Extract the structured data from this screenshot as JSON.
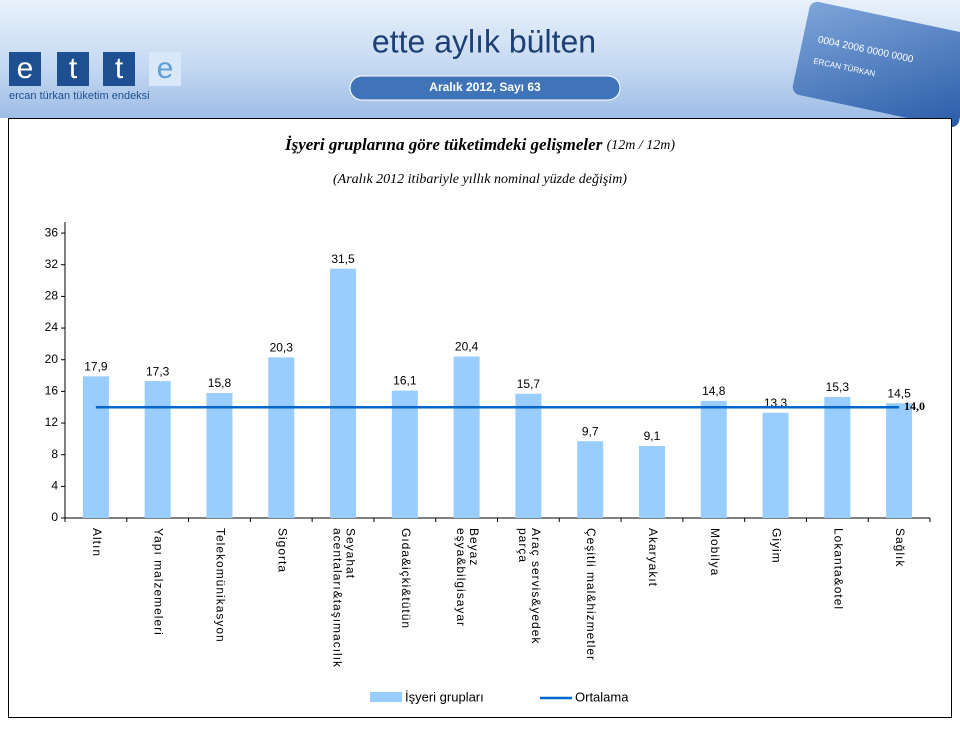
{
  "header": {
    "logo_letters": [
      "e",
      "t",
      "t",
      "e"
    ],
    "logo_caption": "ercan türkan tüketim endeksi",
    "title": "ette aylık bülten",
    "issue": "Aralık 2012, Sayı  63",
    "card_number": "0004 2006 0000 0000",
    "card_name": "ERCAN TÜRKAN"
  },
  "chart_data": {
    "type": "bar",
    "title": "İşyeri gruplarına göre tüketimdeki  gelişmeler",
    "title_note": "(12m / 12m)",
    "subtitle": "(Aralık 2012 itibariyle yıllık nominal yüzde değişim)",
    "categories": [
      "Altın",
      "Yapı malzemeleri",
      "Telekomünikasyon",
      "Sigorta",
      "Seyahat\nacentaları&taşımacılık",
      "Gıda&içki&tütün",
      "Beyaz\neşya&bilgisayar",
      "Araç servis&yedek\nparça",
      "Çeşitli mal&hizmetler",
      "Akaryakıt",
      "Mobilya",
      "Giyim",
      "Lokanta&otel",
      "Sağlık"
    ],
    "series": [
      {
        "name": "İşyeri grupları",
        "color": "#99ccff",
        "values": [
          17.9,
          17.3,
          15.8,
          20.3,
          31.5,
          16.1,
          20.4,
          15.7,
          9.7,
          9.1,
          14.8,
          13.3,
          15.3,
          14.5
        ],
        "value_labels": [
          "17,9",
          "17,3",
          "15,8",
          "20,3",
          "31,5",
          "16,1",
          "20,4",
          "15,7",
          "9,7",
          "9,1",
          "14,8",
          "13,3",
          "15,3",
          "14,5"
        ]
      }
    ],
    "average": {
      "name": "Ortalama",
      "color": "#0066cc",
      "value": 14.0,
      "value_label": "14,0"
    },
    "ylim": [
      0,
      37.4
    ],
    "yticks": [
      0,
      4,
      8,
      12,
      16,
      20,
      24,
      28,
      32,
      36
    ],
    "legend": "bottom"
  }
}
